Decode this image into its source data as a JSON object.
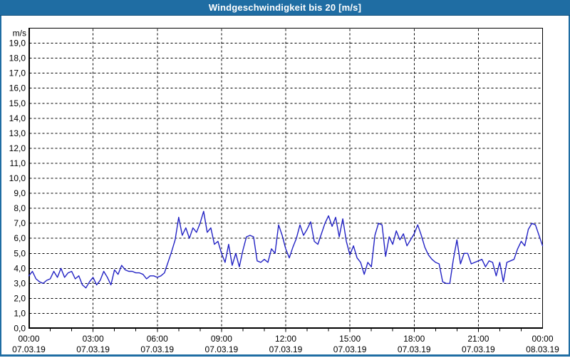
{
  "window": {
    "title": "Windgeschwindigkeit bis 20 [m/s]"
  },
  "colors": {
    "titlebar_bg": "#1f6da3",
    "titlebar_text": "#ffffff",
    "window_border": "#1f6da3",
    "content_bg": "#ffffff",
    "axis": "#000000",
    "grid": "#000000",
    "text": "#000000",
    "line": "#2222c4"
  },
  "chart_data": {
    "type": "line",
    "title": "Windgeschwindigkeit bis 20 [m/s]",
    "ylabel": "m/s",
    "ylim": [
      0,
      20
    ],
    "ytick_interval": 1.0,
    "ytick_labels": [
      "0,0",
      "1,0",
      "2,0",
      "3,0",
      "4,0",
      "5,0",
      "6,0",
      "7,0",
      "8,0",
      "9,0",
      "10,0",
      "11,0",
      "12,0",
      "13,0",
      "14,0",
      "15,0",
      "16,0",
      "17,0",
      "18,0",
      "19,0"
    ],
    "x_range_hours": [
      0,
      24
    ],
    "minor_xtick_interval_hours": 1,
    "major_xtick_interval_hours": 3,
    "grid": "black dashed; horizontal every 1 m/s, vertical every 3 h",
    "legend": "none",
    "xticks": [
      {
        "time": "00:00",
        "date": "07.03.19"
      },
      {
        "time": "03:00",
        "date": "07.03.19"
      },
      {
        "time": "06:00",
        "date": "07.03.19"
      },
      {
        "time": "09:00",
        "date": "07.03.19"
      },
      {
        "time": "12:00",
        "date": "07.03.19"
      },
      {
        "time": "15:00",
        "date": "07.03.19"
      },
      {
        "time": "18:00",
        "date": "07.03.19"
      },
      {
        "time": "21:00",
        "date": "07.03.19"
      },
      {
        "time": "00:00",
        "date": "08.03.19"
      }
    ],
    "sample_interval_minutes": 10,
    "series": [
      {
        "name": "Windgeschwindigkeit",
        "unit": "m/s",
        "values": [
          3.5,
          3.8,
          3.3,
          3.1,
          3.0,
          3.2,
          3.3,
          3.8,
          3.4,
          4.0,
          3.4,
          3.7,
          3.8,
          3.3,
          3.5,
          2.9,
          2.7,
          3.1,
          3.4,
          2.9,
          3.2,
          3.8,
          3.4,
          2.9,
          3.9,
          3.6,
          4.2,
          3.9,
          3.8,
          3.8,
          3.7,
          3.7,
          3.6,
          3.3,
          3.5,
          3.5,
          3.4,
          3.5,
          3.7,
          4.4,
          5.1,
          5.9,
          7.4,
          6.2,
          6.7,
          6.0,
          6.7,
          6.4,
          7.0,
          7.8,
          6.4,
          6.7,
          5.6,
          5.8,
          5.0,
          4.4,
          5.6,
          4.2,
          5.0,
          4.1,
          5.2,
          6.1,
          6.2,
          6.1,
          4.5,
          4.4,
          4.6,
          4.4,
          5.3,
          5.0,
          6.9,
          6.2,
          5.3,
          4.7,
          5.4,
          6.0,
          6.9,
          6.2,
          6.6,
          7.1,
          5.8,
          5.6,
          6.3,
          7.0,
          7.5,
          6.8,
          7.4,
          6.1,
          7.3,
          5.8,
          4.9,
          5.5,
          4.7,
          4.4,
          3.6,
          4.4,
          4.1,
          6.2,
          7.0,
          6.9,
          4.8,
          6.1,
          5.6,
          6.5,
          5.9,
          6.3,
          5.5,
          5.9,
          6.3,
          6.9,
          6.2,
          5.4,
          4.9,
          4.6,
          4.4,
          4.3,
          3.1,
          3.0,
          3.0,
          4.6,
          5.9,
          4.3,
          5.0,
          5.0,
          4.3,
          4.4,
          4.5,
          4.6,
          4.1,
          4.5,
          4.4,
          3.5,
          4.4,
          3.1,
          4.4,
          4.5,
          4.6,
          5.3,
          5.8,
          5.5,
          6.6,
          7.0,
          6.9,
          6.2,
          5.5
        ]
      }
    ]
  }
}
